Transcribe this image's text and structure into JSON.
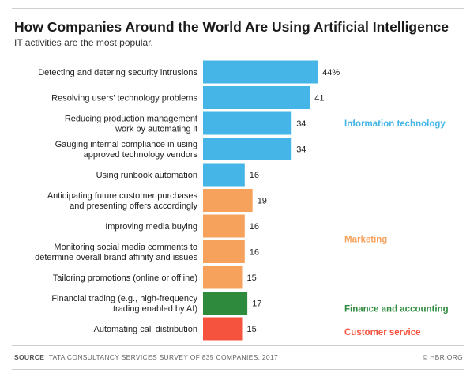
{
  "chart_data": {
    "type": "bar",
    "orientation": "horizontal",
    "title": "How Companies Around the World Are Using Artificial Intelligence",
    "subtitle": "IT activities are the most popular.",
    "categories": [
      "Detecting and detering security intrusions",
      "Resolving users’ technology problems",
      "Reducing production management work by automating it",
      "Gauging internal compliance in using approved technology vendors",
      "Using runbook automation",
      "Anticipating future customer purchases and presenting offers accordingly",
      "Improving media buying",
      "Monitoring social media comments to determine overall brand affinity and issues",
      "Tailoring promotions (online or offline)",
      "Financial trading (e.g., high-frequency trading enabled by AI)",
      "Automating call distribution"
    ],
    "category_lines": [
      [
        "Detecting and detering security intrusions"
      ],
      [
        "Resolving users’ technology problems"
      ],
      [
        "Reducing production management",
        "work by automating it"
      ],
      [
        "Gauging internal compliance in using",
        "approved technology vendors"
      ],
      [
        "Using runbook automation"
      ],
      [
        "Anticipating future customer purchases",
        "and presenting offers accordingly"
      ],
      [
        "Improving media buying"
      ],
      [
        "Monitoring social media comments to",
        "determine overall brand affinity and issues"
      ],
      [
        "Tailoring promotions (online or offline)"
      ],
      [
        "Financial trading (e.g., high-frequency",
        "trading enabled by AI)"
      ],
      [
        "Automating call distribution"
      ]
    ],
    "values": [
      44,
      41,
      34,
      34,
      16,
      19,
      16,
      16,
      15,
      17,
      15
    ],
    "value_labels": [
      "44%",
      "41",
      "34",
      "34",
      "16",
      "19",
      "16",
      "16",
      "15",
      "17",
      "15"
    ],
    "unit": "%",
    "groups": [
      {
        "name": "Information technology",
        "color": "#45b5e8",
        "indices": [
          0,
          1,
          2,
          3,
          4
        ]
      },
      {
        "name": "Marketing",
        "color": "#f7a25c",
        "indices": [
          5,
          6,
          7,
          8
        ]
      },
      {
        "name": "Finance and accounting",
        "color": "#2e8b3e",
        "indices": [
          9
        ]
      },
      {
        "name": "Customer service",
        "color": "#f5533d",
        "indices": [
          10
        ]
      }
    ],
    "grid": false,
    "legend": "right, group labels beside bars"
  },
  "footer": {
    "source_label": "SOURCE",
    "source_text": "TATA CONSULTANCY SERVICES SURVEY OF 835 COMPANIES, 2017",
    "credit": "© HBR.ORG"
  }
}
